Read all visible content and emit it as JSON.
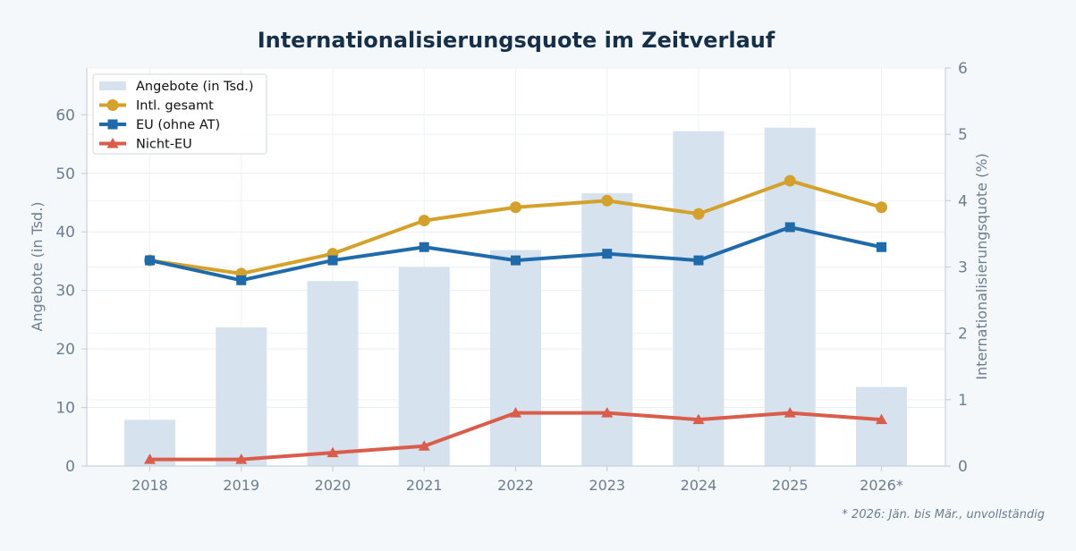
{
  "chart_data": {
    "type": "bar+line",
    "title": "Internationalisierungsquote im Zeitverlauf",
    "categories": [
      "2018",
      "2019",
      "2020",
      "2021",
      "2022",
      "2023",
      "2024",
      "2025",
      "2026*"
    ],
    "bars": {
      "name": "Angebote (in Tsd.)",
      "axis": "left",
      "color": "#d6e3ef",
      "values": [
        7.9,
        23.7,
        31.6,
        34.0,
        36.9,
        46.6,
        57.2,
        57.8,
        13.5
      ]
    },
    "series": [
      {
        "name": "Intl. gesamt",
        "axis": "right",
        "color": "#d4a22a",
        "marker": "circle",
        "values": [
          3.1,
          2.9,
          3.2,
          3.7,
          3.9,
          4.0,
          3.8,
          4.3,
          3.9
        ]
      },
      {
        "name": "EU (ohne AT)",
        "axis": "right",
        "color": "#1f6aab",
        "marker": "square",
        "values": [
          3.1,
          2.8,
          3.1,
          3.3,
          3.1,
          3.2,
          3.1,
          3.6,
          3.3
        ]
      },
      {
        "name": "Nicht-EU",
        "axis": "right",
        "color": "#d95d4a",
        "marker": "triangle",
        "values": [
          0.1,
          0.1,
          0.2,
          0.3,
          0.8,
          0.8,
          0.7,
          0.8,
          0.7
        ]
      }
    ],
    "ylabel_left": "Angebote (in Tsd.)",
    "ylabel_right": "Internationalisierungsquote (%)",
    "ylim_left": [
      0,
      68
    ],
    "yticks_left": [
      0,
      10,
      20,
      30,
      40,
      50,
      60
    ],
    "ylim_right": [
      0,
      6
    ],
    "yticks_right": [
      0,
      1,
      2,
      3,
      4,
      5,
      6
    ],
    "grid": true,
    "legend_position": "top-left",
    "footnote": "* 2026: Jän. bis Mär., unvollständig"
  }
}
